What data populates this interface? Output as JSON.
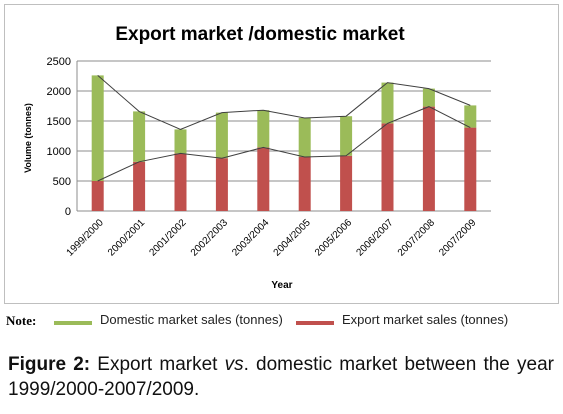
{
  "chart_data": {
    "type": "bar",
    "stacked": true,
    "title": "Export market /domestic market",
    "xlabel": "Year",
    "ylabel": "Volume (tonnes)",
    "ylim": [
      0,
      2500
    ],
    "yticks": [
      0,
      500,
      1000,
      1500,
      2000,
      2500
    ],
    "grid": true,
    "categories": [
      "1999/2000",
      "2000/2001",
      "2001/2002",
      "2002/2003",
      "2003/2004",
      "2004/2005",
      "2005/2006",
      "2006/2007",
      "2007/2008",
      "2007/2009"
    ],
    "series": [
      {
        "name": "Export market sales (tonnes)",
        "color": "#c0504d",
        "values": [
          500,
          820,
          960,
          880,
          1060,
          900,
          920,
          1460,
          1740,
          1390
        ]
      },
      {
        "name": "Domestic market sales (tonnes)",
        "color": "#9bbb59",
        "values": [
          1760,
          840,
          400,
          760,
          620,
          650,
          660,
          680,
          300,
          370
        ]
      }
    ],
    "line_color": "#404040"
  },
  "note": {
    "label": "Note:",
    "legend": [
      {
        "text": "Domestic market sales (tonnes)",
        "color": "#9bbb59"
      },
      {
        "text": "Export market sales (tonnes)",
        "color": "#c0504d"
      }
    ]
  },
  "caption": {
    "label": "Figure 2:",
    "part1": " Export market ",
    "vs": "vs",
    "part2": ". domestic market between the year 1999/2000-2007/2009."
  }
}
